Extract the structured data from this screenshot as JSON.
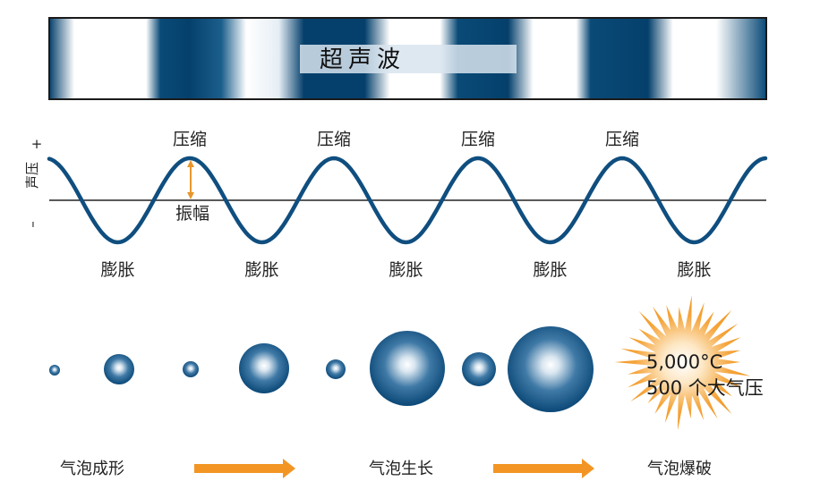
{
  "banner": {
    "title": "超声波"
  },
  "wave": {
    "axis_plus": "+",
    "axis_minus": "–",
    "axis_label": "声压",
    "compression_label": "压缩",
    "rarefaction_label": "膨胀",
    "amplitude_label": "振幅"
  },
  "bubbles": {
    "stages": [
      "气泡成形",
      "气泡生长",
      "气泡爆破"
    ],
    "burst_temperature": "5,000°C",
    "burst_pressure": "500 个大气压"
  },
  "colors": {
    "wave_blue": "#0f4e7f",
    "dark_band": "#05406c",
    "arrow_orange": "#f39524",
    "burst_orange": "#f0961f",
    "amplitude_arrow": "#e8962a"
  }
}
